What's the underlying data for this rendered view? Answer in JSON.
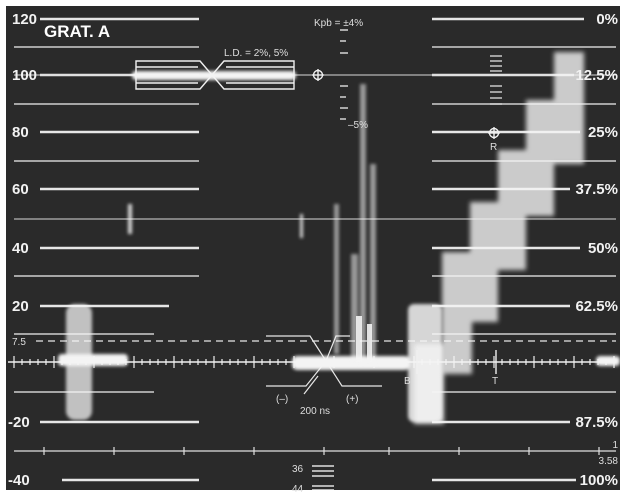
{
  "graticule": {
    "title": "GRAT. A",
    "left_scale": [
      "120",
      "100",
      "80",
      "60",
      "40",
      "20",
      "7.5",
      "-20",
      "-40"
    ],
    "right_scale": [
      "0%",
      "12.5%",
      "25%",
      "37.5%",
      "50%",
      "62.5%",
      "87.5%",
      "100%"
    ],
    "right_extra": [
      "1",
      "3.58"
    ],
    "top_marker": "Kpb = ±4%",
    "kpb_minus": "–5%",
    "ld_label": "L.D. = 2%, 5%",
    "timing_label": "200 ns",
    "sign_minus": "(–)",
    "sign_plus": "(+)",
    "bottom_marks": [
      "36",
      "44"
    ],
    "marker_letters": [
      "R",
      "B",
      "T"
    ]
  },
  "colors": {
    "screen": "#2a2a2a",
    "trace": "#f4f4f4",
    "graticule_line": "#e6e6e6",
    "border": "#ffffff"
  }
}
